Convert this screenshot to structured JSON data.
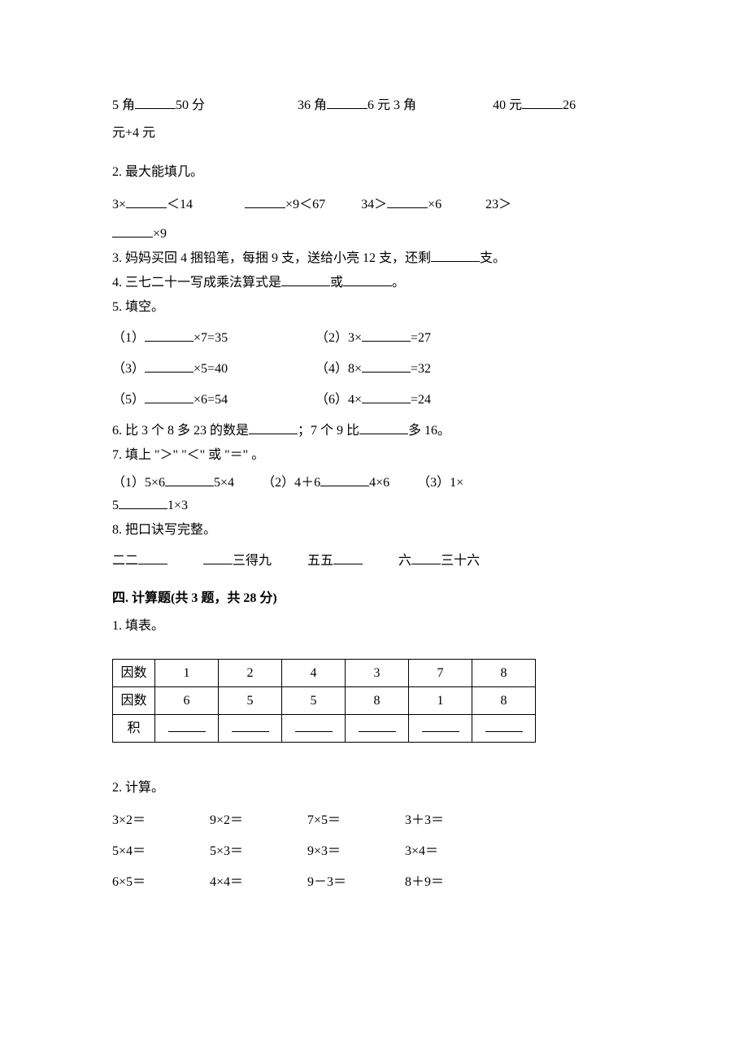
{
  "q1": {
    "a_left": "5 角",
    "a_right": "50 分",
    "b_left": "36 角",
    "b_right": "6 元 3 角",
    "c_left": "40 元",
    "c_right_1": "26",
    "c_line2": "元+4 元"
  },
  "q2": {
    "title": "2. 最大能填几。",
    "a_pre": "3×",
    "a_post": "＜14",
    "b_post": "×9＜67",
    "c_pre": "34＞",
    "c_post": "×6",
    "d_pre": "23＞",
    "d_post": "×9"
  },
  "q3": "3. 妈妈买回 4 捆铅笔，每捆 9 支，送给小亮 12 支，还剩",
  "q3_suffix": "支。",
  "q4_pre": "4. 三七二十一写成乘法算式是",
  "q4_mid": "或",
  "q4_suf": "。",
  "q5_title": "5. 填空。",
  "q5_items": [
    {
      "l": "（1）",
      "l_post": "×7=35",
      "r_pre": "（2）3×",
      "r_post": "=27"
    },
    {
      "l": "（3）",
      "l_post": "×5=40",
      "r_pre": "（4）8×",
      "r_post": "=32"
    },
    {
      "l": "（5）",
      "l_post": "×6=54",
      "r_pre": "（6）4×",
      "r_post": "=24"
    }
  ],
  "q6_pre": "6. 比 3 个 8 多 23 的数是",
  "q6_mid": "；7 个 9 比",
  "q6_suf": "多 16。",
  "q7_title": "7. 填上 \"＞\" \"＜\" 或 \"＝\" 。",
  "q7": {
    "a_pre": "（1）5×6",
    "a_post": "5×4",
    "b_pre": "（2）4＋6",
    "b_post": "4×6",
    "c_pre": "（3）1×",
    "line2_pre": "5",
    "line2_post": "1×3"
  },
  "q8_title": "8. 把口诀写完整。",
  "q8": {
    "a": "二二",
    "b_post": "三得九",
    "c": "五五",
    "d_pre": "六",
    "d_post": "三十六"
  },
  "sec4_title": "四. 计算题(共 3 题，共 28 分)",
  "t1_title": "1. 填表。",
  "table": {
    "row1_label": "因数",
    "row1": [
      "1",
      "2",
      "4",
      "3",
      "7",
      "8"
    ],
    "row2_label": "因数",
    "row2": [
      "6",
      "5",
      "5",
      "8",
      "1",
      "8"
    ],
    "row3_label": "积"
  },
  "t2_title": "2. 计算。",
  "calc": [
    [
      "3×2＝",
      "9×2＝",
      "7×5＝",
      "3＋3＝"
    ],
    [
      "5×4＝",
      "5×3＝",
      "9×3＝",
      "3×4＝"
    ],
    [
      "6×5＝",
      "4×4＝",
      "9－3＝",
      "8＋9＝"
    ]
  ]
}
